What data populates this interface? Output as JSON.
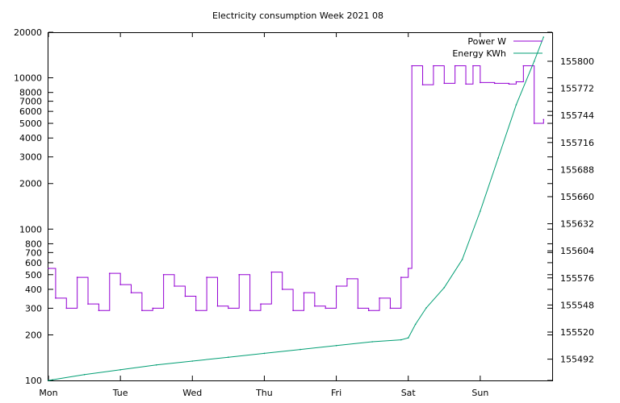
{
  "chart_data": {
    "type": "line",
    "title": "Electricity consumption Week 2021 08",
    "xlabel": "",
    "ylabel": "",
    "y2label": "",
    "x_ticks": [
      "Mon",
      "Tue",
      "Wed",
      "Thu",
      "Fri",
      "Sat",
      "Sun"
    ],
    "xlim": [
      0,
      7
    ],
    "y_scale": "log",
    "ylim": [
      100,
      20000
    ],
    "y_ticks": [
      100,
      200,
      300,
      400,
      500,
      600,
      700,
      800,
      1000,
      2000,
      3000,
      4000,
      5000,
      6000,
      7000,
      8000,
      10000,
      20000
    ],
    "y2lim": [
      155470,
      155830
    ],
    "y2_ticks": [
      155492,
      155520,
      155548,
      155576,
      155604,
      155632,
      155660,
      155688,
      155716,
      155744,
      155772,
      155800
    ],
    "grid": false,
    "legend_position": "top-right",
    "series": [
      {
        "name": "Power W",
        "axis": "y1",
        "color": "#9400d3",
        "x": [
          0.0,
          0.1,
          0.25,
          0.4,
          0.55,
          0.7,
          0.85,
          1.0,
          1.15,
          1.3,
          1.45,
          1.6,
          1.75,
          1.9,
          2.05,
          2.2,
          2.35,
          2.5,
          2.65,
          2.8,
          2.95,
          3.1,
          3.25,
          3.4,
          3.55,
          3.7,
          3.85,
          4.0,
          4.15,
          4.3,
          4.45,
          4.6,
          4.75,
          4.9,
          5.0,
          5.05,
          5.2,
          5.35,
          5.5,
          5.65,
          5.8,
          5.9,
          6.0,
          6.2,
          6.4,
          6.5,
          6.6,
          6.75,
          6.88
        ],
        "y": [
          550,
          350,
          300,
          480,
          320,
          290,
          510,
          430,
          380,
          290,
          300,
          500,
          420,
          360,
          290,
          480,
          310,
          300,
          500,
          290,
          320,
          520,
          400,
          290,
          380,
          310,
          300,
          420,
          470,
          300,
          290,
          350,
          300,
          480,
          550,
          12000,
          9000,
          12000,
          9200,
          12000,
          9100,
          12000,
          9300,
          9200,
          9100,
          9400,
          12000,
          5000,
          5300
        ]
      },
      {
        "name": "Energy KWh",
        "axis": "y2",
        "color": "#009e73",
        "x": [
          0.0,
          0.5,
          1.0,
          1.5,
          2.0,
          2.5,
          3.0,
          3.5,
          4.0,
          4.5,
          4.9,
          5.0,
          5.1,
          5.25,
          5.5,
          5.75,
          6.0,
          6.25,
          6.5,
          6.75,
          6.88
        ],
        "y": [
          155470,
          155476,
          155481,
          155486,
          155490,
          155494,
          155498,
          155502,
          155506,
          155510,
          155512,
          155514,
          155528,
          155545,
          155566,
          155595,
          155645,
          155700,
          155755,
          155800,
          155825
        ]
      }
    ]
  }
}
